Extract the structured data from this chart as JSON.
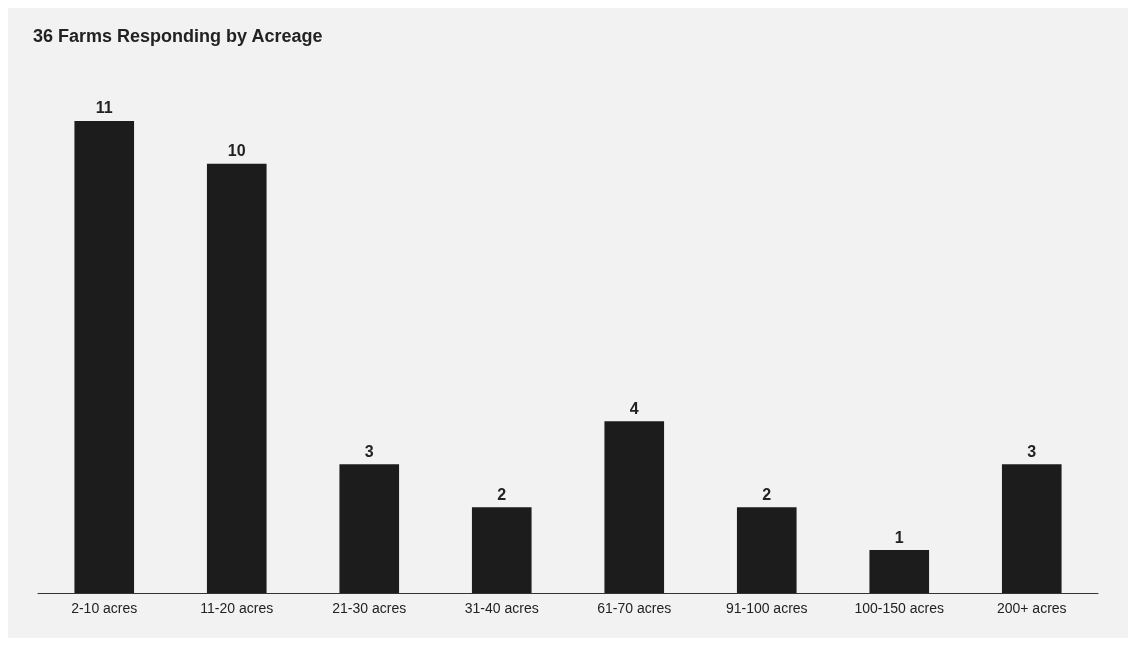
{
  "chart_data": {
    "type": "bar",
    "title": "36 Farms Responding by Acreage",
    "categories": [
      "2-10 acres",
      "11-20 acres",
      "21-30 acres",
      "31-40 acres",
      "61-70 acres",
      "91-100 acres",
      "100-150 acres",
      "200+ acres"
    ],
    "values": [
      11,
      10,
      3,
      2,
      4,
      2,
      1,
      3
    ],
    "color": "#1c1c1c",
    "data_labels": true
  }
}
